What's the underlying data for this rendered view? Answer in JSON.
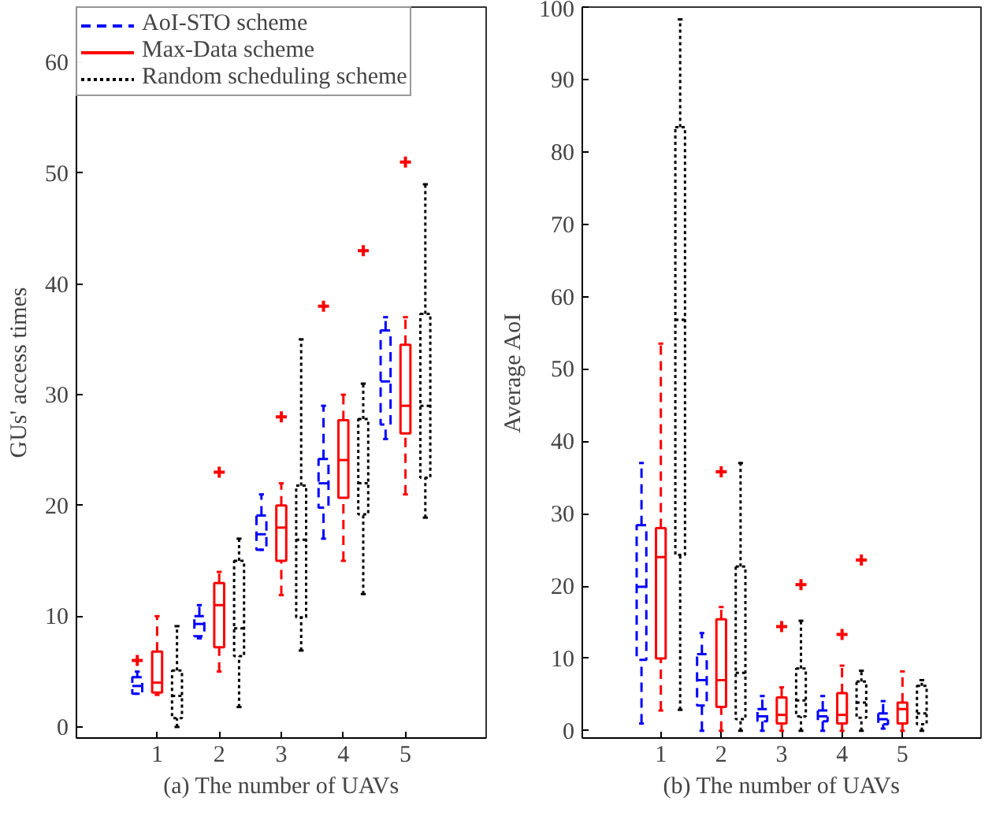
{
  "chart_data": [
    {
      "type": "box",
      "categories": [
        "1",
        "2",
        "3",
        "4",
        "5"
      ],
      "xlabel": "(a) The number of UAVs",
      "ylabel": "GUs' access times",
      "ylim": [
        -1,
        65
      ],
      "yticks": [
        0,
        10,
        20,
        30,
        40,
        50,
        60
      ],
      "legend": "top left",
      "grid": false,
      "series": [
        {
          "name": "AoI-STO scheme",
          "color": "#0000ff",
          "line_style": "dashed",
          "boxes": [
            {
              "low": 3,
              "q1": 3,
              "median": 3.7,
              "q3": 4.5,
              "high": 5,
              "outliers": [
                6
              ]
            },
            {
              "low": 8,
              "q1": 8.2,
              "median": 9.3,
              "q3": 10,
              "high": 11
            },
            {
              "low": 16,
              "q1": 16,
              "median": 17.4,
              "q3": 19.1,
              "high": 21
            },
            {
              "low": 17,
              "q1": 19.8,
              "median": 22,
              "q3": 24.2,
              "high": 29,
              "outliers": [
                38
              ]
            },
            {
              "low": 26,
              "q1": 27.3,
              "median": 31.2,
              "q3": 35.8,
              "high": 37
            }
          ]
        },
        {
          "name": "Max-Data scheme",
          "color": "#ff0000",
          "line_style": "solid",
          "boxes": [
            {
              "low": 2.9,
              "q1": 3.1,
              "median": 4,
              "q3": 6.8,
              "high": 10
            },
            {
              "low": 5,
              "q1": 7.2,
              "median": 11,
              "q3": 13,
              "high": 14,
              "outliers": [
                23
              ]
            },
            {
              "low": 11.9,
              "q1": 15,
              "median": 18,
              "q3": 20,
              "high": 22,
              "outliers": [
                28
              ]
            },
            {
              "low": 15,
              "q1": 20.7,
              "median": 24.1,
              "q3": 27.7,
              "high": 30
            },
            {
              "low": 21,
              "q1": 26.5,
              "median": 29,
              "q3": 34.5,
              "high": 37,
              "outliers": [
                51
              ]
            }
          ]
        },
        {
          "name": "Random scheduling scheme",
          "color": "#000000",
          "line_style": "dotted",
          "boxes": [
            {
              "low": 0,
              "q1": 0.8,
              "median": 2.8,
              "q3": 5.1,
              "high": 9.1
            },
            {
              "low": 1.8,
              "q1": 6.4,
              "median": 8.9,
              "q3": 15,
              "high": 17
            },
            {
              "low": 6.9,
              "q1": 9.9,
              "median": 16.9,
              "q3": 21.8,
              "high": 35
            },
            {
              "low": 12,
              "q1": 19.2,
              "median": 22,
              "q3": 27.8,
              "high": 31,
              "outliers": [
                43
              ]
            },
            {
              "low": 18.9,
              "q1": 22.5,
              "median": 29,
              "q3": 37.3,
              "high": 49
            }
          ]
        }
      ]
    },
    {
      "type": "box",
      "categories": [
        "1",
        "2",
        "3",
        "4",
        "5"
      ],
      "xlabel": "(b) The number of UAVs",
      "ylabel": "Average AoI",
      "ylim": [
        -1,
        100
      ],
      "yticks": [
        0,
        10,
        20,
        30,
        40,
        50,
        60,
        70,
        80,
        90,
        100
      ],
      "grid": false,
      "series": [
        {
          "color": "#0000ff",
          "line_style": "dashed",
          "boxes": [
            {
              "low": 1,
              "q1": 9.8,
              "median": 19.9,
              "q3": 28.4,
              "high": 37
            },
            {
              "low": 0,
              "q1": 3.5,
              "median": 7,
              "q3": 10.6,
              "high": 13.5
            },
            {
              "low": 0,
              "q1": 1.3,
              "median": 2,
              "q3": 3,
              "high": 4.8
            },
            {
              "low": 0,
              "q1": 1.3,
              "median": 2,
              "q3": 2.8,
              "high": 4.8
            },
            {
              "low": 0.3,
              "q1": 0.9,
              "median": 1.6,
              "q3": 2.4,
              "high": 4.1
            }
          ]
        },
        {
          "color": "#ff0000",
          "line_style": "solid",
          "boxes": [
            {
              "low": 2.8,
              "q1": 10,
              "median": 24,
              "q3": 28,
              "high": 53.5
            },
            {
              "low": 0,
              "q1": 3.3,
              "median": 7,
              "q3": 15.4,
              "high": 17.1,
              "outliers": [
                35.8
              ]
            },
            {
              "low": 0,
              "q1": 1,
              "median": 2.2,
              "q3": 4.6,
              "high": 6,
              "outliers": [
                14.4
              ]
            },
            {
              "low": 0,
              "q1": 1,
              "median": 2.2,
              "q3": 5.2,
              "high": 9,
              "outliers": [
                13.3
              ]
            },
            {
              "low": 0,
              "q1": 1,
              "median": 3,
              "q3": 3.9,
              "high": 8.2
            }
          ]
        },
        {
          "color": "#000000",
          "line_style": "dotted",
          "boxes": [
            {
              "low": 2.9,
              "q1": 24.3,
              "median": 56.8,
              "q3": 83.4,
              "high": 98.3
            },
            {
              "low": 0,
              "q1": 1.6,
              "median": 8,
              "q3": 22.7,
              "high": 37
            },
            {
              "low": 0,
              "q1": 2,
              "median": 4.2,
              "q3": 8.6,
              "high": 15.2,
              "outliers": [
                20.2
              ]
            },
            {
              "low": 0,
              "q1": 1.8,
              "median": 3.9,
              "q3": 6.8,
              "high": 8.3,
              "outliers": [
                23.6
              ]
            },
            {
              "low": 0,
              "q1": 0.9,
              "median": 2.4,
              "q3": 6.2,
              "high": 7
            }
          ]
        }
      ]
    }
  ]
}
